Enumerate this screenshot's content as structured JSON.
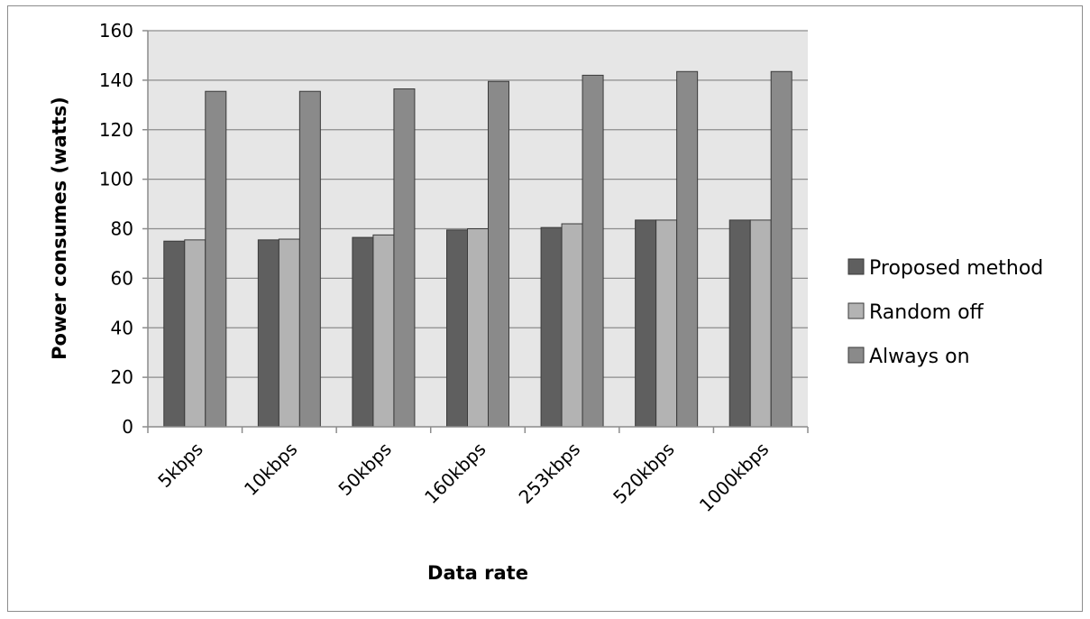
{
  "chart_data": {
    "type": "bar",
    "title": "",
    "xlabel": "Data rate",
    "ylabel": "Power consumes (watts)",
    "ylim": [
      0,
      160
    ],
    "yticks": [
      0,
      20,
      40,
      60,
      80,
      100,
      120,
      140,
      160
    ],
    "categories": [
      "5kbps",
      "10kbps",
      "50kbps",
      "160kbps",
      "253kbps",
      "520kbps",
      "1000kbps"
    ],
    "series": [
      {
        "name": "Proposed method",
        "color": "#5f5f5f",
        "values": [
          75,
          75.5,
          76.5,
          79.5,
          80.5,
          83.5,
          83.5
        ]
      },
      {
        "name": "Random off",
        "color": "#b3b3b3",
        "values": [
          75.5,
          75.8,
          77.5,
          80,
          82,
          83.5,
          83.5
        ]
      },
      {
        "name": "Always on",
        "color": "#8a8a8a",
        "values": [
          135.5,
          135.5,
          136.5,
          139.5,
          142,
          143.5,
          143.5
        ]
      }
    ],
    "grid": true,
    "plot_background": "#e6e6e6",
    "legend_position": "right"
  }
}
